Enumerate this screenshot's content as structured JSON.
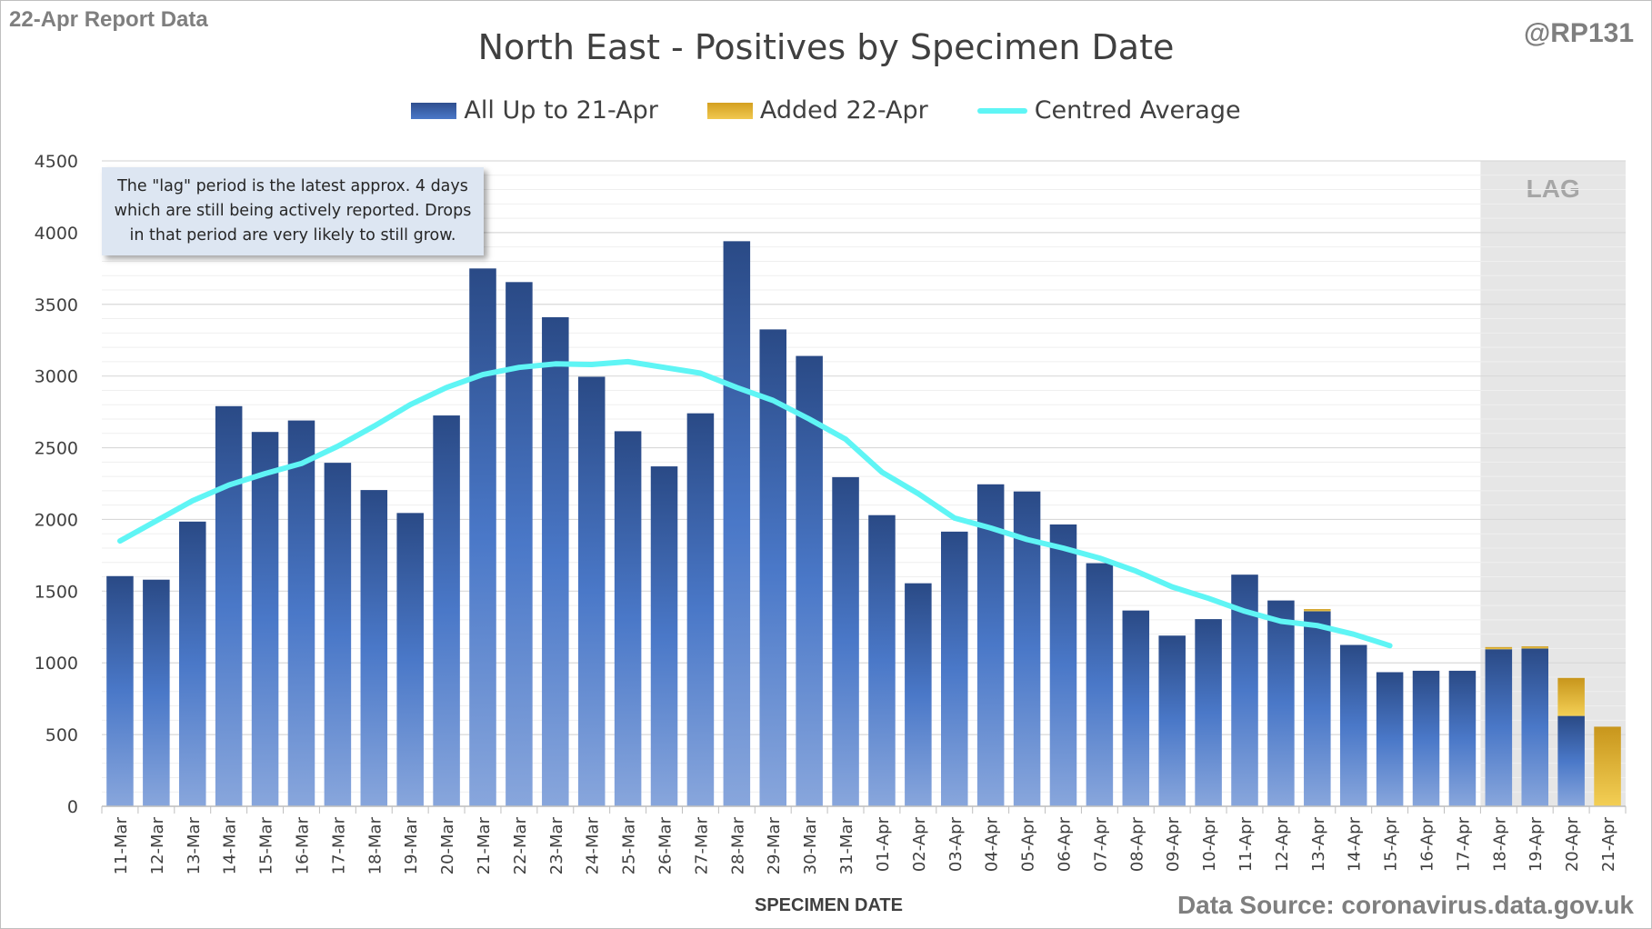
{
  "header": {
    "report_label": "22-Apr Report Data",
    "handle": "@RP131"
  },
  "footer": {
    "source": "Data Source: coronavirus.data.gov.uk"
  },
  "note": {
    "text": "The \"lag\" period is the latest approx. 4 days which are still being actively reported.  Drops in that period are very likely to still grow."
  },
  "colors": {
    "all_series": "#3a64b0",
    "added_series": "#e8b830",
    "average_line": "#5ff5f5",
    "lag_shade": "#e6e6e6",
    "grid": "#d9d9d9"
  },
  "chart_data": {
    "type": "bar",
    "title": "North East - Positives by Specimen Date",
    "xlabel": "SPECIMEN DATE",
    "ylabel": "",
    "ylim": [
      0,
      4500
    ],
    "yticks": [
      0,
      500,
      1000,
      1500,
      2000,
      2500,
      3000,
      3500,
      4000,
      4500
    ],
    "stacked": true,
    "legend_position": "top",
    "grid": true,
    "lag_label": "LAG",
    "lag_categories": [
      "18-Apr",
      "19-Apr",
      "20-Apr",
      "21-Apr"
    ],
    "categories": [
      "11-Mar",
      "12-Mar",
      "13-Mar",
      "14-Mar",
      "15-Mar",
      "16-Mar",
      "17-Mar",
      "18-Mar",
      "19-Mar",
      "20-Mar",
      "21-Mar",
      "22-Mar",
      "23-Mar",
      "24-Mar",
      "25-Mar",
      "26-Mar",
      "27-Mar",
      "28-Mar",
      "29-Mar",
      "30-Mar",
      "31-Mar",
      "01-Apr",
      "02-Apr",
      "03-Apr",
      "04-Apr",
      "05-Apr",
      "06-Apr",
      "07-Apr",
      "08-Apr",
      "09-Apr",
      "10-Apr",
      "11-Apr",
      "12-Apr",
      "13-Apr",
      "14-Apr",
      "15-Apr",
      "16-Apr",
      "17-Apr",
      "18-Apr",
      "19-Apr",
      "20-Apr",
      "21-Apr"
    ],
    "series": [
      {
        "name": "All Up to 21-Apr",
        "values": [
          1605,
          1580,
          1985,
          2790,
          2610,
          2690,
          2395,
          2205,
          2045,
          2725,
          3750,
          3655,
          3410,
          2995,
          2615,
          2370,
          2740,
          3940,
          3325,
          3140,
          2295,
          2030,
          1555,
          1915,
          2245,
          2195,
          1965,
          1695,
          1365,
          1190,
          1305,
          1615,
          1435,
          1360,
          1125,
          935,
          945,
          945,
          1095,
          1100,
          630,
          0
        ]
      },
      {
        "name": "Added 22-Apr",
        "values": [
          0,
          0,
          0,
          0,
          0,
          0,
          0,
          0,
          0,
          0,
          0,
          0,
          0,
          0,
          0,
          0,
          0,
          0,
          0,
          0,
          0,
          0,
          0,
          0,
          0,
          0,
          0,
          0,
          0,
          0,
          0,
          0,
          0,
          15,
          0,
          0,
          0,
          0,
          15,
          15,
          265,
          555
        ]
      },
      {
        "name": "Centred Average",
        "type": "line",
        "values": [
          1850,
          1990,
          2130,
          2240,
          2320,
          2390,
          2510,
          2650,
          2800,
          2920,
          3010,
          3060,
          3085,
          3080,
          3100,
          3060,
          3020,
          2920,
          2830,
          2700,
          2560,
          2330,
          2180,
          2010,
          1940,
          1860,
          1800,
          1730,
          1640,
          1530,
          1450,
          1360,
          1290,
          1260,
          1200,
          1120,
          null,
          null,
          null,
          null,
          null,
          null
        ]
      }
    ]
  }
}
